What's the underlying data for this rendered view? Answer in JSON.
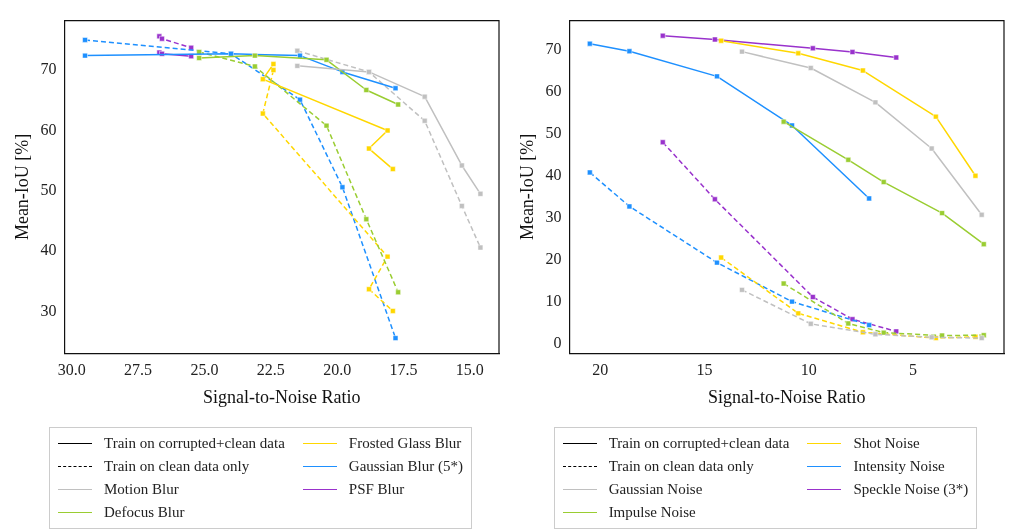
{
  "chart_data": [
    {
      "type": "line",
      "xlabel": "Signal-to-Noise Ratio",
      "ylabel": "Mean-IoU [%]",
      "xlim": [
        30.27,
        13.9
      ],
      "ylim": [
        23.1,
        78.2
      ],
      "xticks": [
        {
          "value": 30,
          "label": "30.0"
        },
        {
          "value": 27.5,
          "label": "27.5"
        },
        {
          "value": 25,
          "label": "25.0"
        },
        {
          "value": 22.5,
          "label": "22.5"
        },
        {
          "value": 20,
          "label": "20.0"
        },
        {
          "value": 17.5,
          "label": "17.5"
        },
        {
          "value": 15,
          "label": "15.0"
        }
      ],
      "yticks": [
        30,
        40,
        50,
        60,
        70
      ],
      "marker": "square",
      "legend": "bottom",
      "series": [
        {
          "name": "Train on corrupted+clean data",
          "color": "#000000",
          "line_style": "solid"
        },
        {
          "name": "Train on clean data only",
          "color": "#000000",
          "line_style": "dashed"
        },
        {
          "name": "Motion Blur",
          "color": "#c0c0c0",
          "line_style": "solid",
          "x": [
            21.5,
            18.8,
            16.7,
            15.3,
            14.6
          ],
          "values": [
            70.7,
            69.7,
            65.6,
            54.2,
            49.5
          ]
        },
        {
          "name": "Defocus Blur",
          "color": "#9acd32",
          "line_style": "solid",
          "x": [
            25.2,
            23.1,
            20.4,
            18.9,
            17.7
          ],
          "values": [
            72.0,
            72.4,
            71.7,
            66.7,
            64.3
          ]
        },
        {
          "name": "Frosted Glass Blur",
          "color": "#ffd700",
          "line_style": "solid",
          "x": [
            22.4,
            22.8,
            18.1,
            18.8,
            17.9
          ],
          "values": [
            71.0,
            68.5,
            60.0,
            57.0,
            53.6
          ]
        },
        {
          "name": "Gaussian Blur (5*)",
          "color": "#1e90ff",
          "line_style": "solid",
          "x": [
            29.5,
            24.0,
            21.4,
            19.8,
            17.8
          ],
          "values": [
            72.4,
            72.7,
            72.4,
            69.7,
            67.0
          ]
        },
        {
          "name": "PSF Blur",
          "color": "#9932cc",
          "line_style": "solid",
          "x": [
            26.7,
            26.6,
            25.5
          ],
          "values": [
            72.9,
            72.7,
            72.3
          ]
        },
        {
          "color": "#c0c0c0",
          "line_style": "dashed",
          "x": [
            21.5,
            18.8,
            16.7,
            15.3,
            14.6
          ],
          "values": [
            73.2,
            69.7,
            61.6,
            47.5,
            40.6
          ]
        },
        {
          "color": "#9acd32",
          "line_style": "dashed",
          "x": [
            25.2,
            23.1,
            20.4,
            18.9,
            17.7
          ],
          "values": [
            73.0,
            70.6,
            60.8,
            45.3,
            33.2
          ]
        },
        {
          "color": "#ffd700",
          "line_style": "dashed",
          "x": [
            22.4,
            22.8,
            18.1,
            18.8,
            17.9
          ],
          "values": [
            70.0,
            62.8,
            39.1,
            33.7,
            30.1
          ]
        },
        {
          "color": "#1e90ff",
          "line_style": "dashed",
          "x": [
            29.5,
            24.0,
            21.4,
            19.8,
            17.8
          ],
          "values": [
            75.0,
            72.7,
            65.1,
            50.6,
            25.6
          ]
        },
        {
          "color": "#9932cc",
          "line_style": "dashed",
          "x": [
            26.7,
            26.6,
            25.5
          ],
          "values": [
            75.6,
            75.2,
            73.7
          ]
        }
      ]
    },
    {
      "type": "line",
      "xlabel": "Signal-to-Noise Ratio",
      "ylabel": "Mean-IoU [%]",
      "xlim": [
        21.47,
        0.63
      ],
      "ylim": [
        -2.3,
        77.0
      ],
      "xticks": [
        20,
        15,
        10,
        5
      ],
      "yticks": [
        0,
        10,
        20,
        30,
        40,
        50,
        60,
        70
      ],
      "marker": "square",
      "legend": "bottom",
      "series": [
        {
          "name": "Train on corrupted+clean data",
          "color": "#000000",
          "line_style": "solid"
        },
        {
          "name": "Train on clean data only",
          "color": "#000000",
          "line_style": "dashed"
        },
        {
          "name": "Gaussian Noise",
          "color": "#c0c0c0",
          "line_style": "solid",
          "x": [
            13.2,
            9.9,
            6.8,
            4.1,
            1.7
          ],
          "values": [
            69.6,
            65.7,
            57.5,
            46.5,
            30.7
          ]
        },
        {
          "name": "Impulse Noise",
          "color": "#9acd32",
          "line_style": "solid",
          "x": [
            11.2,
            8.1,
            6.4,
            3.6,
            1.6
          ],
          "values": [
            52.9,
            43.8,
            38.5,
            31.1,
            23.7
          ]
        },
        {
          "name": "Shot Noise",
          "color": "#ffd700",
          "line_style": "solid",
          "x": [
            14.2,
            10.5,
            7.4,
            3.9,
            2.0
          ],
          "values": [
            72.2,
            69.2,
            65.1,
            54.1,
            40.0
          ]
        },
        {
          "name": "Intensity Noise",
          "color": "#1e90ff",
          "line_style": "solid",
          "x": [
            20.5,
            18.6,
            14.4,
            10.8,
            7.1
          ],
          "values": [
            71.5,
            69.7,
            63.7,
            52.0,
            34.6
          ]
        },
        {
          "name": "Speckle Noise (3*)",
          "color": "#9932cc",
          "line_style": "solid",
          "x": [
            17.0,
            14.5,
            9.8,
            7.9,
            5.8
          ],
          "values": [
            73.4,
            72.5,
            70.4,
            69.5,
            68.2
          ]
        },
        {
          "color": "#c0c0c0",
          "line_style": "dashed",
          "x": [
            13.2,
            9.9,
            6.8,
            4.1,
            1.7
          ],
          "values": [
            12.8,
            4.7,
            2.2,
            1.5,
            1.3
          ]
        },
        {
          "color": "#9acd32",
          "line_style": "dashed",
          "x": [
            11.2,
            8.1,
            6.4,
            3.6,
            1.6
          ],
          "values": [
            14.3,
            4.8,
            2.6,
            1.9,
            2.0
          ]
        },
        {
          "color": "#ffd700",
          "line_style": "dashed",
          "x": [
            14.2,
            10.5,
            7.4,
            3.9,
            2.0
          ],
          "values": [
            20.5,
            7.2,
            2.7,
            1.3,
            1.6
          ]
        },
        {
          "color": "#1e90ff",
          "line_style": "dashed",
          "x": [
            20.5,
            18.6,
            14.4,
            10.8,
            7.1
          ],
          "values": [
            40.8,
            32.7,
            19.3,
            10.0,
            4.4
          ]
        },
        {
          "color": "#9932cc",
          "line_style": "dashed",
          "x": [
            17.0,
            14.5,
            9.8,
            7.9,
            5.8
          ],
          "values": [
            48.0,
            34.4,
            11.1,
            5.8,
            2.9
          ]
        }
      ]
    }
  ]
}
